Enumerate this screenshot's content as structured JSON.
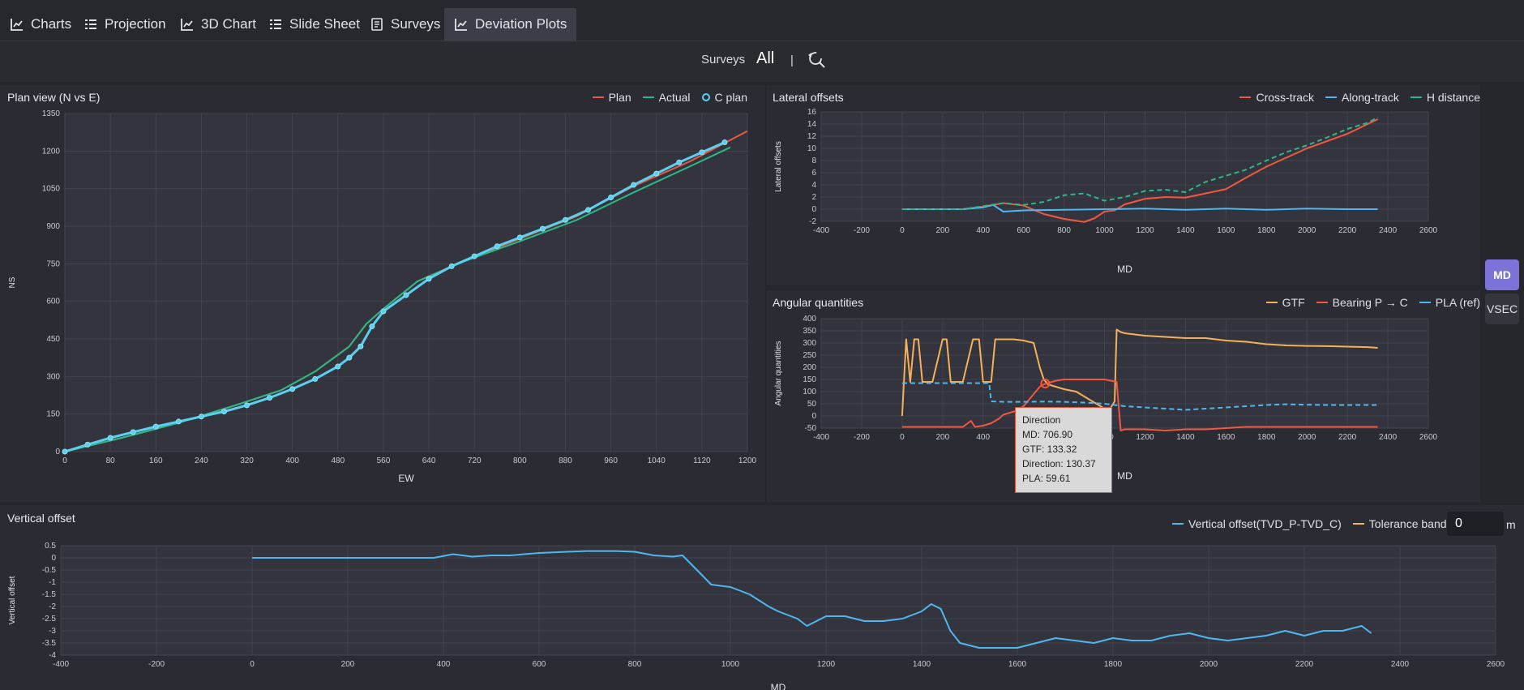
{
  "tabs": [
    {
      "label": "Charts",
      "icon": "line-chart-icon"
    },
    {
      "label": "Projection",
      "icon": "list-icon"
    },
    {
      "label": "3D Chart",
      "icon": "line-chart-icon"
    },
    {
      "label": "Slide Sheet",
      "icon": "list-icon"
    },
    {
      "label": "Surveys",
      "icon": "document-icon"
    },
    {
      "label": "Deviation Plots",
      "icon": "line-chart-icon",
      "active": true
    }
  ],
  "surveys": {
    "label": "Surveys",
    "value": "All",
    "separator": "|",
    "icon": "refresh-search-icon"
  },
  "plan_view": {
    "title": "Plan view (N vs E)",
    "legend": [
      {
        "label": "Plan",
        "color": "#e8593f",
        "kind": "line"
      },
      {
        "label": "Actual",
        "color": "#2bb988",
        "kind": "line"
      },
      {
        "label": "C plan",
        "color": "#5ad0f0",
        "kind": "circle"
      }
    ]
  },
  "lateral": {
    "title": "Lateral offsets",
    "legend": [
      {
        "label": "Cross-track",
        "color": "#f0583f",
        "kind": "line"
      },
      {
        "label": "Along-track",
        "color": "#4fb7f0",
        "kind": "line"
      },
      {
        "label": "H distance",
        "color": "#2bb988",
        "kind": "line"
      }
    ]
  },
  "angular": {
    "title": "Angular quantities",
    "legend": [
      {
        "label": "GTF",
        "color": "#f5b05a",
        "kind": "line"
      },
      {
        "label": "Bearing P → C",
        "color": "#f0583f",
        "kind": "line"
      },
      {
        "label": "PLA (ref)",
        "color": "#4fb7f0",
        "kind": "line"
      }
    ],
    "tooltip": [
      "Direction",
      "MD: 706.90",
      "GTF: 133.32",
      "Direction: 130.37",
      "PLA: 59.61"
    ]
  },
  "vertical": {
    "title": "Vertical offset",
    "legend": [
      {
        "label": "Vertical offset(TVD_P-TVD_C)",
        "color": "#4fb7f0",
        "kind": "line"
      },
      {
        "label": "Tolerance band",
        "color": "#f5b05a",
        "kind": "line"
      }
    ],
    "tolerance_value": "0",
    "tolerance_unit": "m"
  },
  "side_buttons": {
    "md": "MD",
    "vsec": "VSEC"
  },
  "chart_data": [
    {
      "type": "scatter",
      "title": "Plan view (N vs E)",
      "xlabel": "EW",
      "ylabel": "NS",
      "xlim": [
        0,
        1200
      ],
      "ylim": [
        0,
        1350
      ],
      "xticks": [
        0,
        80,
        160,
        240,
        320,
        400,
        480,
        560,
        640,
        720,
        800,
        880,
        960,
        1040,
        1120,
        1200
      ],
      "yticks": [
        0,
        150,
        300,
        450,
        600,
        750,
        900,
        1050,
        1200,
        1350
      ],
      "series": [
        {
          "name": "Plan",
          "x": [
            0,
            100,
            200,
            300,
            380,
            440,
            500,
            530,
            560,
            620,
            700,
            800,
            900,
            1000,
            1100,
            1200
          ],
          "y": [
            0,
            55,
            115,
            185,
            245,
            320,
            420,
            510,
            570,
            680,
            760,
            850,
            940,
            1060,
            1160,
            1280
          ]
        },
        {
          "name": "Actual",
          "x": [
            0,
            100,
            200,
            300,
            380,
            440,
            500,
            530,
            560,
            620,
            700,
            800,
            900,
            1000,
            1100,
            1170
          ],
          "y": [
            0,
            55,
            115,
            185,
            245,
            320,
            420,
            510,
            570,
            680,
            758,
            840,
            925,
            1035,
            1140,
            1215
          ]
        },
        {
          "name": "C plan",
          "x": [
            0,
            40,
            80,
            120,
            160,
            200,
            240,
            280,
            320,
            360,
            400,
            440,
            480,
            500,
            520,
            540,
            560,
            600,
            640,
            680,
            720,
            760,
            800,
            840,
            880,
            920,
            960,
            1000,
            1040,
            1080,
            1120,
            1160
          ],
          "y": [
            0,
            28,
            55,
            78,
            100,
            120,
            140,
            160,
            185,
            215,
            250,
            290,
            340,
            375,
            420,
            500,
            560,
            625,
            690,
            740,
            780,
            820,
            855,
            890,
            925,
            965,
            1015,
            1065,
            1110,
            1155,
            1195,
            1235
          ]
        }
      ]
    },
    {
      "type": "line",
      "title": "Lateral offsets",
      "xlabel": "MD",
      "ylabel": "Lateral offsets",
      "xlim": [
        -400,
        2600
      ],
      "ylim": [
        -2,
        16
      ],
      "xticks": [
        -400,
        -200,
        0,
        200,
        400,
        600,
        800,
        1000,
        1200,
        1400,
        1600,
        1800,
        2000,
        2200,
        2400,
        2600
      ],
      "yticks": [
        -2,
        0,
        2,
        4,
        6,
        8,
        10,
        12,
        14,
        16
      ],
      "series": [
        {
          "name": "Cross-track",
          "x": [
            0,
            300,
            400,
            500,
            600,
            700,
            800,
            900,
            950,
            1000,
            1050,
            1100,
            1200,
            1300,
            1400,
            1500,
            1600,
            1700,
            1800,
            1900,
            2000,
            2100,
            2200,
            2300,
            2350
          ],
          "y": [
            0,
            0,
            0.4,
            1.0,
            0.6,
            -0.8,
            -1.6,
            -2.1,
            -1.5,
            -0.4,
            -0.2,
            0.8,
            1.7,
            2.0,
            1.9,
            2.6,
            3.3,
            5.2,
            7.0,
            8.5,
            10.0,
            11.2,
            12.4,
            14.0,
            14.8
          ]
        },
        {
          "name": "Along-track",
          "x": [
            0,
            300,
            400,
            450,
            500,
            600,
            800,
            1000,
            1200,
            1400,
            1600,
            1800,
            2000,
            2200,
            2350
          ],
          "y": [
            0,
            0,
            0.3,
            0.7,
            -0.4,
            -0.2,
            -0.1,
            0,
            0.1,
            -0.1,
            0.1,
            -0.1,
            0.1,
            0,
            0
          ]
        },
        {
          "name": "H distance",
          "x": [
            0,
            300,
            400,
            500,
            600,
            700,
            800,
            900,
            1000,
            1100,
            1200,
            1300,
            1400,
            1500,
            1600,
            1700,
            1800,
            1900,
            2000,
            2100,
            2200,
            2300,
            2350
          ],
          "y": [
            0,
            0,
            0.5,
            1.0,
            0.7,
            1.2,
            2.3,
            2.6,
            1.4,
            2.0,
            3.0,
            3.2,
            2.8,
            4.5,
            5.5,
            6.5,
            8.0,
            9.4,
            10.5,
            11.8,
            13.2,
            14.2,
            15.1
          ]
        }
      ]
    },
    {
      "type": "line",
      "title": "Angular quantities",
      "xlabel": "MD",
      "ylabel": "Angular quantities",
      "xlim": [
        -400,
        2600
      ],
      "ylim": [
        -50,
        400
      ],
      "xticks": [
        -400,
        -200,
        0,
        200,
        400,
        600,
        800,
        1000,
        1200,
        1400,
        1600,
        1800,
        2000,
        2200,
        2400,
        2600
      ],
      "yticks": [
        -50,
        0,
        50,
        100,
        150,
        200,
        250,
        300,
        350,
        400
      ],
      "series": [
        {
          "name": "GTF",
          "x": [
            0,
            20,
            40,
            60,
            80,
            100,
            150,
            200,
            220,
            240,
            260,
            300,
            350,
            380,
            400,
            440,
            460,
            500,
            550,
            600,
            650,
            680,
            700,
            720,
            760,
            800,
            860,
            900,
            940,
            980,
            1020,
            1050,
            1060,
            1080,
            1100,
            1150,
            1200,
            1300,
            1400,
            1500,
            1600,
            1700,
            1800,
            1900,
            2000,
            2100,
            2200,
            2300,
            2350
          ],
          "y": [
            0,
            315,
            140,
            315,
            315,
            140,
            140,
            315,
            315,
            140,
            140,
            140,
            315,
            315,
            140,
            140,
            315,
            315,
            315,
            310,
            300,
            200,
            150,
            130,
            120,
            110,
            100,
            80,
            60,
            40,
            20,
            60,
            355,
            345,
            340,
            335,
            330,
            325,
            320,
            320,
            310,
            305,
            295,
            290,
            288,
            287,
            285,
            283,
            280
          ]
        },
        {
          "name": "Bearing P → C",
          "x": [
            0,
            100,
            200,
            300,
            340,
            360,
            400,
            440,
            480,
            500,
            560,
            600,
            640,
            680,
            700,
            760,
            800,
            900,
            1000,
            1060,
            1080,
            1100,
            1200,
            1300,
            1400,
            1500,
            1600,
            1700,
            1800,
            1900,
            2000,
            2100,
            2200,
            2300,
            2350
          ],
          "y": [
            -45,
            -45,
            -45,
            -45,
            -20,
            -45,
            -40,
            -30,
            -10,
            5,
            20,
            40,
            80,
            120,
            130,
            145,
            150,
            150,
            150,
            140,
            -60,
            -55,
            -55,
            -60,
            -55,
            -55,
            -50,
            -45,
            -45,
            -45,
            -45,
            -45,
            -45,
            -45,
            -45
          ]
        },
        {
          "name": "PLA (ref)",
          "x": [
            0,
            100,
            200,
            300,
            400,
            430,
            440,
            500,
            600,
            700,
            800,
            900,
            1000,
            1100,
            1200,
            1300,
            1400,
            1500,
            1600,
            1700,
            1800,
            1900,
            2000,
            2100,
            2200,
            2300,
            2350
          ],
          "y": [
            135,
            135,
            135,
            135,
            135,
            135,
            60,
            58,
            58,
            59,
            58,
            55,
            50,
            40,
            35,
            30,
            25,
            30,
            35,
            40,
            45,
            48,
            46,
            45,
            45,
            45,
            45
          ]
        }
      ]
    },
    {
      "type": "line",
      "title": "Vertical offset",
      "xlabel": "MD",
      "ylabel": "Vertical offset",
      "xlim": [
        -400,
        2600
      ],
      "ylim": [
        -4,
        0.5
      ],
      "xticks": [
        -400,
        -200,
        0,
        200,
        400,
        600,
        800,
        1000,
        1200,
        1400,
        1600,
        1800,
        2000,
        2200,
        2400,
        2600
      ],
      "yticks": [
        -4,
        -3.5,
        -3,
        -2.5,
        -2,
        -1.5,
        -1,
        -0.5,
        0,
        0.5
      ],
      "series": [
        {
          "name": "Vertical offset(TVD_P-TVD_C)",
          "x": [
            0,
            200,
            380,
            420,
            460,
            500,
            540,
            600,
            660,
            700,
            760,
            800,
            840,
            880,
            900,
            920,
            960,
            1000,
            1040,
            1080,
            1100,
            1140,
            1160,
            1180,
            1200,
            1240,
            1280,
            1320,
            1360,
            1400,
            1420,
            1440,
            1460,
            1480,
            1520,
            1560,
            1600,
            1640,
            1680,
            1720,
            1760,
            1800,
            1840,
            1880,
            1920,
            1960,
            2000,
            2040,
            2080,
            2120,
            2160,
            2200,
            2240,
            2280,
            2320,
            2340
          ],
          "y": [
            0,
            0,
            0,
            0.15,
            0.05,
            0.1,
            0.1,
            0.2,
            0.25,
            0.28,
            0.28,
            0.25,
            0.1,
            0.05,
            0.1,
            -0.3,
            -1.1,
            -1.2,
            -1.5,
            -2.0,
            -2.2,
            -2.5,
            -2.8,
            -2.6,
            -2.4,
            -2.4,
            -2.6,
            -2.6,
            -2.5,
            -2.2,
            -1.9,
            -2.1,
            -3.0,
            -3.5,
            -3.7,
            -3.7,
            -3.7,
            -3.5,
            -3.3,
            -3.4,
            -3.5,
            -3.3,
            -3.4,
            -3.4,
            -3.2,
            -3.1,
            -3.3,
            -3.4,
            -3.3,
            -3.2,
            -3.0,
            -3.2,
            -3.0,
            -3.0,
            -2.8,
            -3.1
          ]
        }
      ]
    }
  ]
}
